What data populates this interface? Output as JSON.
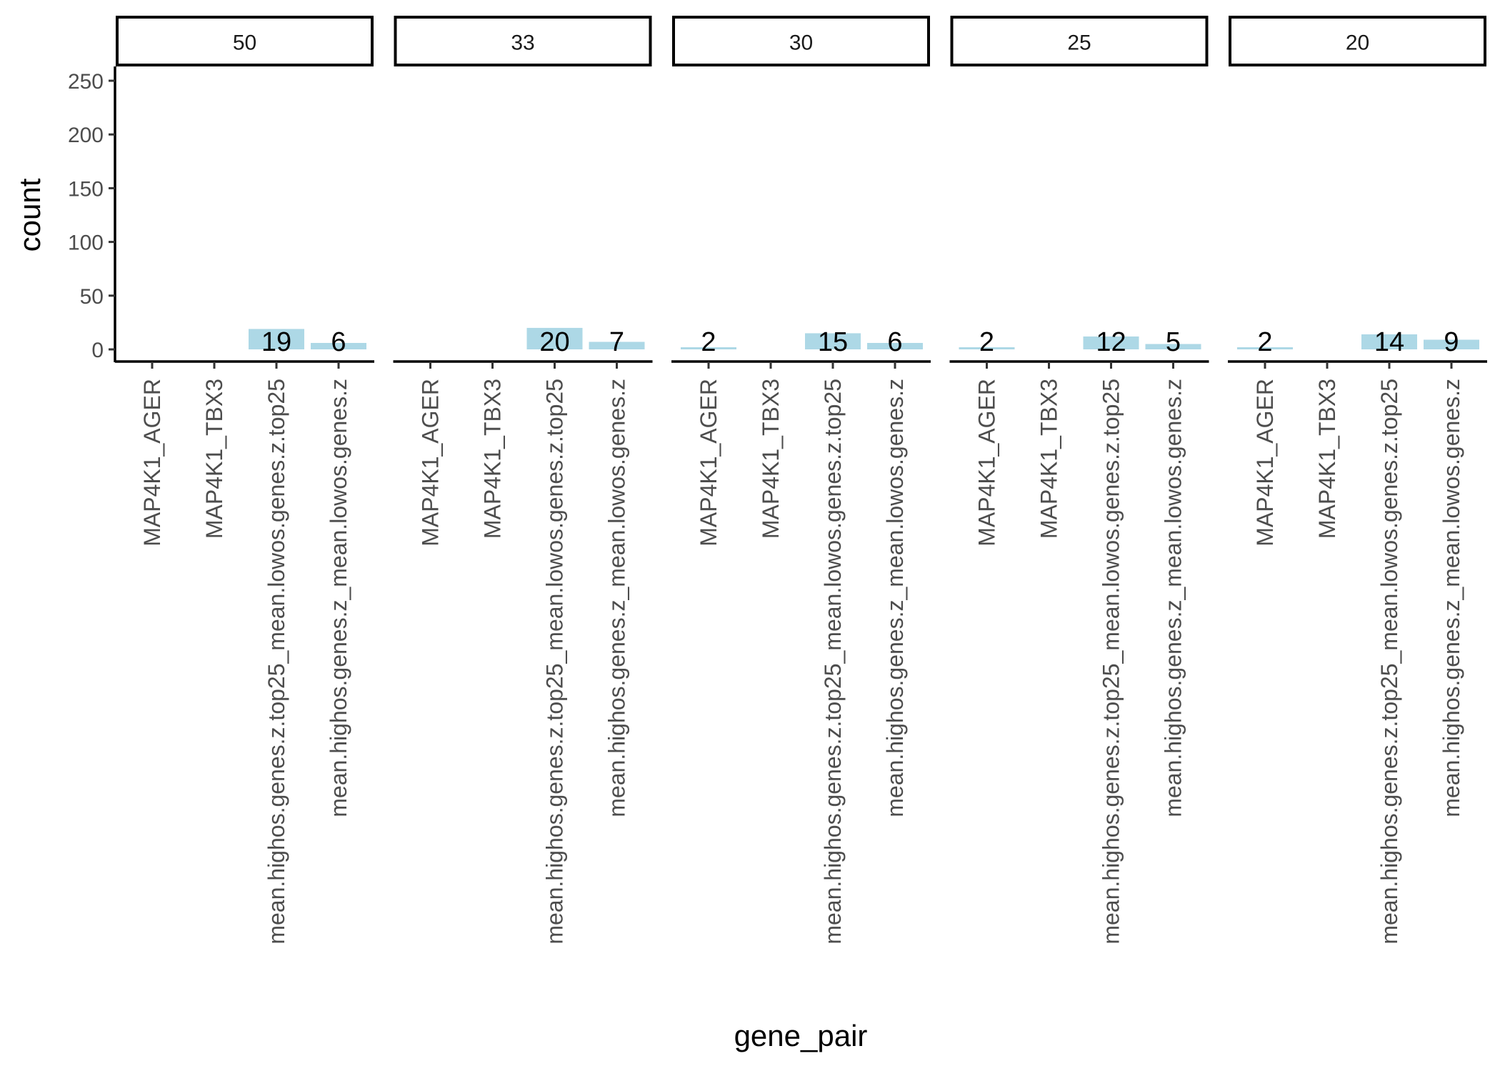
{
  "chart_data": {
    "type": "bar",
    "facet_variable_shown_in_strips": true,
    "facets": [
      "50",
      "33",
      "30",
      "25",
      "20"
    ],
    "categories": [
      "MAP4K1_AGER",
      "MAP4K1_TBX3",
      "mean.highos.genes.z.top25_mean.lowos.genes.z.top25",
      "mean.highos.genes.z_mean.lowos.genes.z"
    ],
    "values_by_facet": [
      [
        null,
        null,
        19,
        6
      ],
      [
        null,
        null,
        20,
        7
      ],
      [
        2,
        null,
        15,
        6
      ],
      [
        2,
        null,
        12,
        5
      ],
      [
        2,
        null,
        14,
        9
      ]
    ],
    "xlabel": "gene_pair",
    "ylabel": "count",
    "ylim": [
      0,
      260
    ],
    "yticks": [
      0,
      50,
      100,
      150,
      200,
      250
    ],
    "bar_color": "#add8e6",
    "grid": false,
    "legend": "none"
  }
}
